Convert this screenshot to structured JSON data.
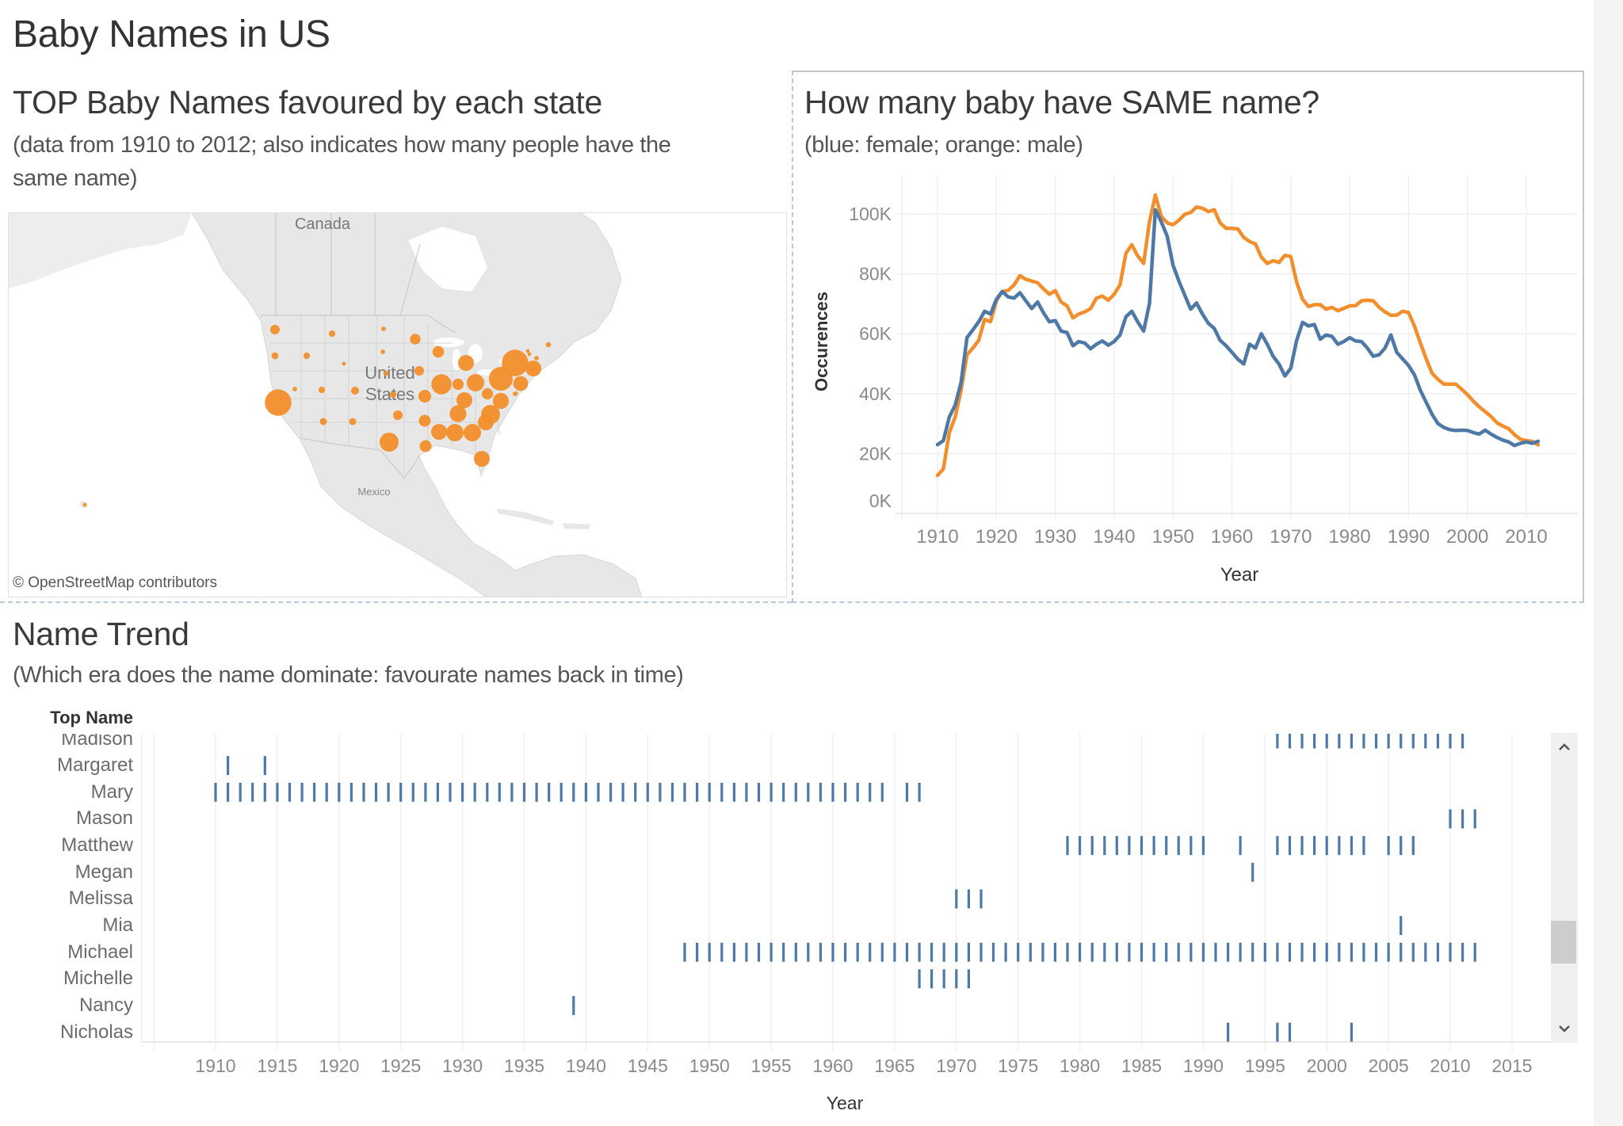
{
  "page": {
    "title": "Baby Names in US",
    "strip_color": "#f4f4f4"
  },
  "map_panel": {
    "title": "TOP Baby Names favoured by each state",
    "subtitle_line1": "(data from 1910 to 2012; also indicates how many people have the",
    "subtitle_line2": "same name)",
    "labels": {
      "canada": "Canada",
      "united_states_line1": "United",
      "united_states_line2": "States",
      "mexico": "Mexico"
    },
    "attribution": "© OpenStreetMap contributors",
    "bubble_color": "#f28e2b",
    "land_color": "#e7e7e7",
    "bubble_relative_sizes": [
      100,
      3,
      13,
      7,
      6,
      6,
      3,
      2,
      3,
      4,
      6,
      9,
      6,
      7,
      7,
      13,
      52,
      16,
      13,
      23,
      20,
      20,
      19,
      58,
      36,
      18,
      43,
      36,
      40,
      36,
      43,
      43,
      36,
      36,
      52,
      36,
      18,
      81,
      100,
      32,
      3,
      1,
      9,
      36,
      3,
      2,
      2,
      4,
      2
    ]
  },
  "line_panel": {
    "title": "How many baby have SAME name?",
    "subtitle": "(blue: female; orange: male)"
  },
  "trend_panel": {
    "title": "Name Trend",
    "subtitle": "(Which era does the name dominate: favourate names back in time)",
    "scroll_position": 0.73,
    "scroll_up_icon": "chevron-up",
    "scroll_down_icon": "chevron-down"
  },
  "chart_data": [
    {
      "type": "line",
      "title": "How many baby have SAME name?",
      "subtitle": "(blue: female; orange: male)",
      "xlabel": "Year",
      "ylabel": "Occurences",
      "x_start": 1910,
      "x_end": 2012,
      "xlim": [
        1904,
        2018.7
      ],
      "ylim": [
        0,
        110000
      ],
      "x_ticks": [
        1910,
        1920,
        1930,
        1940,
        1950,
        1960,
        1970,
        1980,
        1990,
        2000,
        2010
      ],
      "x_tick_labels": [
        "1910",
        "1920",
        "1930",
        "1940",
        "1950",
        "1960",
        "1970",
        "1980",
        "1990",
        "2000",
        "2010"
      ],
      "y_ticks": [
        0,
        20000,
        40000,
        60000,
        80000,
        100000
      ],
      "y_tick_labels": [
        "0K",
        "20K",
        "40K",
        "60K",
        "80K",
        "100K"
      ],
      "grid": true,
      "legend": "none",
      "series": [
        {
          "name": "male",
          "color": "#f28e2b",
          "values": [
            12700,
            14900,
            27000,
            32200,
            41100,
            53000,
            55200,
            57800,
            64800,
            64000,
            71000,
            74100,
            74500,
            76300,
            79400,
            78200,
            77600,
            77000,
            75000,
            73200,
            74400,
            70600,
            69300,
            65300,
            66600,
            67300,
            68400,
            71900,
            72600,
            71200,
            73200,
            76300,
            86900,
            89700,
            86000,
            83500,
            97400,
            106300,
            99200,
            97000,
            96400,
            97900,
            99900,
            100500,
            102300,
            101900,
            100800,
            101400,
            97000,
            95200,
            95200,
            95000,
            92200,
            90800,
            90000,
            85600,
            83500,
            84400,
            83800,
            86200,
            85800,
            77200,
            71500,
            69100,
            69700,
            69700,
            68200,
            68800,
            67700,
            68500,
            69300,
            69400,
            71000,
            71200,
            71000,
            68800,
            67300,
            66200,
            66200,
            67500,
            67100,
            62600,
            56900,
            51600,
            46800,
            44800,
            43200,
            43200,
            43200,
            41500,
            39700,
            37500,
            35600,
            34000,
            32400,
            30300,
            29200,
            28300,
            26300,
            24800,
            24300,
            24100,
            22900
          ]
        },
        {
          "name": "female",
          "color": "#4e79a7",
          "values": [
            23000,
            24300,
            32200,
            36200,
            43700,
            58700,
            61300,
            64000,
            67500,
            66600,
            71500,
            74100,
            72300,
            71900,
            73700,
            71000,
            68400,
            70600,
            67000,
            64000,
            64400,
            60900,
            60400,
            56000,
            57400,
            56900,
            55000,
            56500,
            57600,
            56200,
            57400,
            59600,
            65700,
            67500,
            64000,
            60900,
            70100,
            101400,
            97400,
            92600,
            82900,
            77600,
            72800,
            68200,
            70300,
            66600,
            63500,
            61800,
            57800,
            56000,
            53800,
            51500,
            49900,
            56500,
            55200,
            60000,
            56500,
            52500,
            49900,
            45900,
            48500,
            57800,
            63800,
            62600,
            63100,
            58200,
            59600,
            59100,
            56500,
            57400,
            58700,
            57600,
            57400,
            55200,
            52500,
            53000,
            55200,
            59600,
            53800,
            51600,
            49400,
            46300,
            41100,
            37100,
            33100,
            30000,
            28700,
            28000,
            27700,
            27800,
            27700,
            27000,
            26500,
            27800,
            26500,
            25400,
            24500,
            23900,
            22700,
            23400,
            23900,
            23400,
            24100
          ]
        }
      ]
    },
    {
      "type": "scatter",
      "marker": "tick",
      "title": "Name Trend",
      "subtitle": "(Which era does the name dominate: favourate names back in time)",
      "row_header": "Top Name",
      "xlabel": "Year",
      "xlim": [
        1904,
        2018.1
      ],
      "x_grid": [
        1905,
        1910,
        1915,
        1920,
        1925,
        1930,
        1935,
        1940,
        1945,
        1950,
        1955,
        1960,
        1965,
        1970,
        1975,
        1980,
        1985,
        1990,
        1995,
        2000,
        2005,
        2010,
        2015
      ],
      "x_ticks": [
        1910,
        1915,
        1920,
        1925,
        1930,
        1935,
        1940,
        1945,
        1950,
        1955,
        1960,
        1965,
        1970,
        1975,
        1980,
        1985,
        1990,
        1995,
        2000,
        2005,
        2010,
        2015
      ],
      "x_tick_labels": [
        "1910",
        "1915",
        "1920",
        "1925",
        "1930",
        "1935",
        "1940",
        "1945",
        "1950",
        "1955",
        "1960",
        "1965",
        "1970",
        "1975",
        "1980",
        "1985",
        "1990",
        "1995",
        "2000",
        "2005",
        "2010",
        "2015"
      ],
      "mark_color": "#4e79a7",
      "grid": true,
      "rows": [
        {
          "name": "Madison",
          "years": [
            [
              1996,
              2011
            ]
          ]
        },
        {
          "name": "Margaret",
          "years": [
            [
              1911,
              1911
            ],
            [
              1914,
              1914
            ]
          ]
        },
        {
          "name": "Mary",
          "years": [
            [
              1910,
              1964
            ],
            [
              1966,
              1967
            ]
          ]
        },
        {
          "name": "Mason",
          "years": [
            [
              2010,
              2012
            ]
          ]
        },
        {
          "name": "Matthew",
          "years": [
            [
              1979,
              1990
            ],
            [
              1993,
              1993
            ],
            [
              1996,
              2003
            ],
            [
              2005,
              2007
            ]
          ]
        },
        {
          "name": "Megan",
          "years": [
            [
              1994,
              1994
            ]
          ]
        },
        {
          "name": "Melissa",
          "years": [
            [
              1970,
              1972
            ]
          ]
        },
        {
          "name": "Mia",
          "years": [
            [
              2006,
              2006
            ]
          ]
        },
        {
          "name": "Michael",
          "years": [
            [
              1948,
              2012
            ]
          ]
        },
        {
          "name": "Michelle",
          "years": [
            [
              1967,
              1971
            ]
          ]
        },
        {
          "name": "Nancy",
          "years": [
            [
              1939,
              1939
            ]
          ]
        },
        {
          "name": "Nicholas",
          "years": [
            [
              1992,
              1992
            ],
            [
              1996,
              1997
            ],
            [
              2002,
              2002
            ]
          ]
        }
      ]
    }
  ]
}
